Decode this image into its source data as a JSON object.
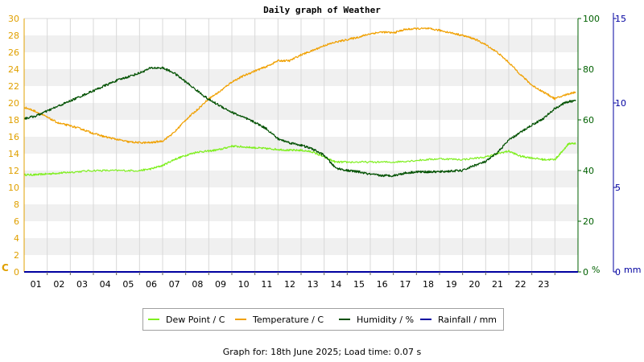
{
  "footer": "Graph for: 18th June 2025; Load time: 0.07 s",
  "colors": {
    "dew": "#7fef1f",
    "temp": "#f0a000",
    "hum": "#005000",
    "rain": "#0000a0",
    "temp_axis": "#e0a000",
    "hum_axis": "#006000",
    "rain_axis": "#0000a0",
    "band": "#f0f0f0",
    "grid": "#d8d8d8"
  },
  "chart_data": {
    "type": "line",
    "title": "Daily graph of Weather",
    "x_ticks": [
      "01",
      "02",
      "03",
      "04",
      "05",
      "06",
      "07",
      "08",
      "09",
      "10",
      "11",
      "12",
      "13",
      "14",
      "15",
      "16",
      "17",
      "18",
      "19",
      "20",
      "21",
      "22",
      "23"
    ],
    "xlim": [
      0,
      24
    ],
    "axes": {
      "temperature": {
        "unit_label": "C",
        "ylim": [
          0,
          30
        ],
        "ticks": [
          0,
          2,
          4,
          6,
          8,
          10,
          12,
          14,
          16,
          18,
          20,
          22,
          24,
          26,
          28,
          30
        ]
      },
      "humidity": {
        "unit_label": "%",
        "ylim": [
          0,
          100
        ],
        "ticks": [
          0,
          20,
          40,
          60,
          80,
          100
        ]
      },
      "rainfall": {
        "unit_label": "mm",
        "ylim": [
          0,
          15
        ],
        "ticks": [
          0,
          5,
          10,
          15
        ]
      }
    },
    "series": [
      {
        "name": "Dew Point / C",
        "axis": "temperature",
        "color_key": "dew",
        "x": [
          0,
          0.5,
          1,
          1.5,
          2,
          3,
          4,
          5,
          5.5,
          6,
          6.5,
          7,
          7.5,
          8,
          8.5,
          9,
          9.5,
          10,
          10.5,
          11,
          11.5,
          12,
          12.5,
          13,
          13.5,
          14,
          15,
          16,
          17,
          18,
          19,
          20,
          20.5,
          21,
          21.5,
          22,
          22.5,
          23,
          23.3,
          23.6,
          23.9
        ],
        "y": [
          11.5,
          11.5,
          11.6,
          11.7,
          11.8,
          12.0,
          12.0,
          12.0,
          12.2,
          12.6,
          13.3,
          13.8,
          14.2,
          14.3,
          14.5,
          14.9,
          14.8,
          14.7,
          14.6,
          14.5,
          14.4,
          14.4,
          14.2,
          13.6,
          13.0,
          13.0,
          13.0,
          13.0,
          13.2,
          13.4,
          13.3,
          13.6,
          14.0,
          14.3,
          13.7,
          13.5,
          13.3,
          13.3,
          14.2,
          15.2,
          15.2
        ]
      },
      {
        "name": "Temperature / C",
        "axis": "temperature",
        "color_key": "temp",
        "x": [
          0,
          0.5,
          1,
          1.5,
          2,
          2.5,
          3,
          3.5,
          4,
          4.5,
          5,
          5.5,
          6,
          6.5,
          7,
          7.5,
          8,
          8.5,
          9,
          9.5,
          10,
          10.5,
          11,
          11.5,
          12,
          12.5,
          13,
          13.5,
          14,
          14.5,
          15,
          15.5,
          16,
          16.5,
          17,
          17.5,
          18,
          18.5,
          19,
          19.5,
          20,
          20.5,
          21,
          21.5,
          22,
          22.5,
          23,
          23.5,
          23.9
        ],
        "y": [
          19.5,
          19.0,
          18.3,
          17.6,
          17.3,
          16.9,
          16.4,
          16.0,
          15.7,
          15.4,
          15.3,
          15.3,
          15.5,
          16.5,
          18.0,
          19.2,
          20.5,
          21.4,
          22.5,
          23.2,
          23.8,
          24.3,
          25.0,
          25.0,
          25.7,
          26.2,
          26.8,
          27.2,
          27.5,
          27.8,
          28.2,
          28.4,
          28.3,
          28.7,
          28.8,
          28.8,
          28.6,
          28.3,
          28.0,
          27.6,
          26.9,
          26.0,
          24.8,
          23.4,
          22.1,
          21.3,
          20.5,
          21.0,
          21.3
        ]
      },
      {
        "name": "Humidity / %",
        "axis": "humidity",
        "color_key": "hum",
        "x": [
          0,
          0.5,
          1,
          1.5,
          2,
          2.5,
          3,
          3.5,
          4,
          4.5,
          5,
          5.5,
          6,
          6.5,
          7,
          7.5,
          8,
          8.5,
          9,
          9.5,
          10,
          10.5,
          11,
          11.5,
          12,
          12.5,
          13,
          13.5,
          14,
          14.5,
          15,
          15.5,
          16,
          16.5,
          17,
          17.5,
          18,
          18.5,
          19,
          19.5,
          20,
          20.5,
          21,
          21.5,
          22,
          22.5,
          23,
          23.5,
          23.9
        ],
        "y": [
          60.5,
          61.5,
          63.5,
          65.5,
          67.5,
          69.5,
          71.5,
          73.5,
          75.5,
          77.0,
          78.5,
          80.5,
          80.5,
          78.5,
          75.0,
          71.5,
          68.0,
          65.5,
          63.0,
          61.0,
          59.0,
          56.5,
          52.5,
          51.0,
          50.0,
          48.5,
          46.0,
          41.0,
          40.0,
          39.5,
          38.5,
          38.0,
          38.0,
          39.0,
          39.5,
          39.5,
          39.5,
          39.8,
          40.0,
          42.0,
          43.5,
          47.0,
          52.0,
          55.0,
          58.0,
          60.5,
          64.5,
          67.0,
          67.5
        ]
      },
      {
        "name": "Rainfall / mm",
        "axis": "rainfall",
        "color_key": "rain",
        "x": [
          0,
          23.9
        ],
        "y": [
          0,
          0
        ]
      }
    ]
  }
}
